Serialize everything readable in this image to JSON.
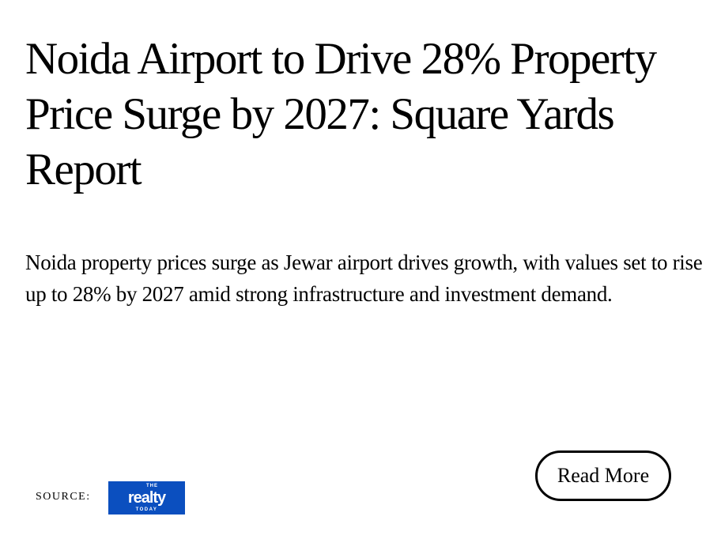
{
  "article": {
    "title": "Noida Airport to Drive 28% Property Price Surge by 2027: Square Yards Report",
    "summary": "Noida property prices surge as Jewar airport drives growth, with values set to rise up to 28% by 2027 amid strong infrastructure and investment demand.",
    "source_label": "SOURCE:",
    "source_logo": {
      "the": "THE",
      "name": "realty",
      "today": "TODAY",
      "color": "#0b4fbf"
    },
    "read_more_label": "Read More"
  }
}
